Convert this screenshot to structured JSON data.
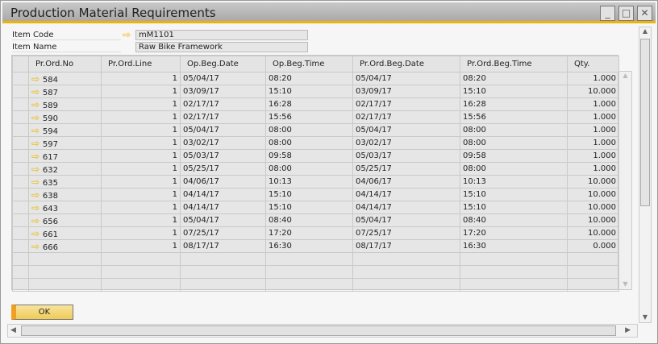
{
  "window": {
    "title": "Production Material Requirements",
    "minimize": "_",
    "maximize": "□",
    "close": "✕"
  },
  "header": {
    "item_code_label": "Item Code",
    "item_code": "mM1101",
    "item_name_label": "Item Name",
    "item_name": "Raw Bike Framework"
  },
  "grid": {
    "columns": [
      "Pr.Ord.No",
      "Pr.Ord.Line",
      "Op.Beg.Date",
      "Op.Beg.Time",
      "Pr.Ord.Beg.Date",
      "Pr.Ord.Beg.Time",
      "Qty."
    ],
    "rows": [
      [
        "584",
        "1",
        "05/04/17",
        "08:20",
        "05/04/17",
        "08:20",
        "1.000"
      ],
      [
        "587",
        "1",
        "03/09/17",
        "15:10",
        "03/09/17",
        "15:10",
        "10.000"
      ],
      [
        "589",
        "1",
        "02/17/17",
        "16:28",
        "02/17/17",
        "16:28",
        "1.000"
      ],
      [
        "590",
        "1",
        "02/17/17",
        "15:56",
        "02/17/17",
        "15:56",
        "1.000"
      ],
      [
        "594",
        "1",
        "05/04/17",
        "08:00",
        "05/04/17",
        "08:00",
        "1.000"
      ],
      [
        "597",
        "1",
        "03/02/17",
        "08:00",
        "03/02/17",
        "08:00",
        "1.000"
      ],
      [
        "617",
        "1",
        "05/03/17",
        "09:58",
        "05/03/17",
        "09:58",
        "1.000"
      ],
      [
        "632",
        "1",
        "05/25/17",
        "08:00",
        "05/25/17",
        "08:00",
        "1.000"
      ],
      [
        "635",
        "1",
        "04/06/17",
        "10:13",
        "04/06/17",
        "10:13",
        "10.000"
      ],
      [
        "638",
        "1",
        "04/14/17",
        "15:10",
        "04/14/17",
        "15:10",
        "10.000"
      ],
      [
        "643",
        "1",
        "04/14/17",
        "15:10",
        "04/14/17",
        "15:10",
        "10.000"
      ],
      [
        "656",
        "1",
        "05/04/17",
        "08:40",
        "05/04/17",
        "08:40",
        "10.000"
      ],
      [
        "661",
        "1",
        "07/25/17",
        "17:20",
        "07/25/17",
        "17:20",
        "10.000"
      ],
      [
        "666",
        "1",
        "08/17/17",
        "16:30",
        "08/17/17",
        "16:30",
        "0.000"
      ]
    ]
  },
  "buttons": {
    "ok": "OK"
  },
  "colors": {
    "accent": "#f0b400",
    "button": "#f0cc55"
  }
}
